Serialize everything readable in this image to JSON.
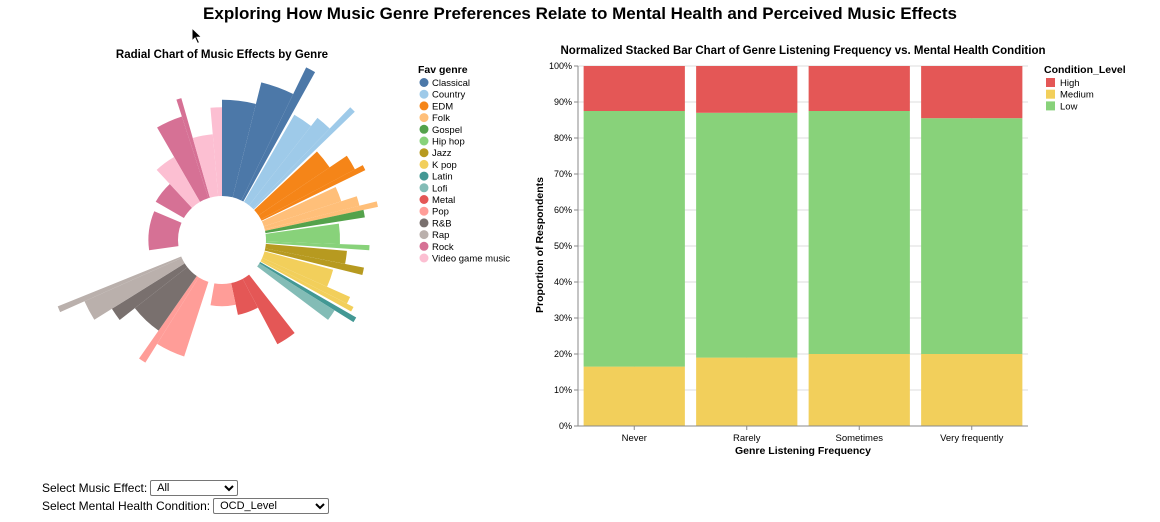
{
  "page": {
    "title": "Exploring How Music Genre Preferences Relate to Mental Health and Perceived Music Effects"
  },
  "controls": {
    "effect_label": "Select Music Effect:",
    "effect_value": "All",
    "condition_label": "Select Mental Health Condition:",
    "condition_value": "OCD_Level"
  },
  "colors": {
    "High": "#e45756",
    "Medium": "#f2cf5b",
    "Low": "#88d27a",
    "axis": "#888888",
    "grid": "#dddddd"
  },
  "chart_data": [
    {
      "type": "radial",
      "title": "Radial Chart of Music Effects by Genre",
      "legend_title": "Fav genre",
      "legend_position": "right",
      "genres": [
        {
          "name": "Classical",
          "color": "#4c78a8"
        },
        {
          "name": "Country",
          "color": "#9ecae9"
        },
        {
          "name": "EDM",
          "color": "#f58518"
        },
        {
          "name": "Folk",
          "color": "#ffbf79"
        },
        {
          "name": "Gospel",
          "color": "#54a24b"
        },
        {
          "name": "Hip hop",
          "color": "#88d27a"
        },
        {
          "name": "Jazz",
          "color": "#b79a20"
        },
        {
          "name": "K pop",
          "color": "#f2cf5b"
        },
        {
          "name": "Latin",
          "color": "#439894"
        },
        {
          "name": "Lofi",
          "color": "#83bcb6"
        },
        {
          "name": "Metal",
          "color": "#e45756"
        },
        {
          "name": "Pop",
          "color": "#ff9d98"
        },
        {
          "name": "R&B",
          "color": "#79706e"
        },
        {
          "name": "Rap",
          "color": "#bab0ac"
        },
        {
          "name": "Rock",
          "color": "#d67195"
        },
        {
          "name": "Video game music",
          "color": "#fcbfd2"
        }
      ],
      "wedges": [
        {
          "genre": "Classical",
          "start": 0,
          "end": 14,
          "value": 0.65
        },
        {
          "genre": "Classical",
          "start": 14,
          "end": 26,
          "value": 0.8
        },
        {
          "genre": "Classical",
          "start": 26,
          "end": 29,
          "value": 1.0
        },
        {
          "genre": "Country",
          "start": 30,
          "end": 38,
          "value": 0.68
        },
        {
          "genre": "Country",
          "start": 38,
          "end": 44,
          "value": 0.75
        },
        {
          "genre": "Country",
          "start": 44,
          "end": 46,
          "value": 0.95
        },
        {
          "genre": "EDM",
          "start": 47,
          "end": 56,
          "value": 0.58
        },
        {
          "genre": "EDM",
          "start": 56,
          "end": 62,
          "value": 0.72
        },
        {
          "genre": "EDM",
          "start": 62,
          "end": 64,
          "value": 0.78
        },
        {
          "genre": "Folk",
          "start": 65,
          "end": 72,
          "value": 0.55
        },
        {
          "genre": "Folk",
          "start": 72,
          "end": 76,
          "value": 0.66
        },
        {
          "genre": "Folk",
          "start": 76,
          "end": 78,
          "value": 0.78
        },
        {
          "genre": "Gospel",
          "start": 78,
          "end": 81,
          "value": 0.68
        },
        {
          "genre": "Hip hop",
          "start": 82,
          "end": 92,
          "value": 0.5
        },
        {
          "genre": "Hip hop",
          "start": 92,
          "end": 94,
          "value": 0.7
        },
        {
          "genre": "Jazz",
          "start": 95,
          "end": 101,
          "value": 0.55
        },
        {
          "genre": "Jazz",
          "start": 101,
          "end": 104,
          "value": 0.68
        },
        {
          "genre": "K pop",
          "start": 105,
          "end": 114,
          "value": 0.48
        },
        {
          "genre": "K pop",
          "start": 114,
          "end": 117,
          "value": 0.65
        },
        {
          "genre": "K pop",
          "start": 117,
          "end": 119,
          "value": 0.7
        },
        {
          "genre": "Latin",
          "start": 120,
          "end": 122,
          "value": 0.75
        },
        {
          "genre": "Lofi",
          "start": 122,
          "end": 127,
          "value": 0.6
        },
        {
          "genre": "Metal",
          "start": 142,
          "end": 152,
          "value": 0.5
        },
        {
          "genre": "Metal",
          "start": 152,
          "end": 168,
          "value": 0.22
        },
        {
          "genre": "Pop",
          "start": 168,
          "end": 190,
          "value": 0.15
        },
        {
          "genre": "Pop",
          "start": 198,
          "end": 212,
          "value": 0.53
        },
        {
          "genre": "Pop",
          "start": 212,
          "end": 215,
          "value": 0.68
        },
        {
          "genre": "R&B",
          "start": 215,
          "end": 232,
          "value": 0.45
        },
        {
          "genre": "R&B",
          "start": 232,
          "end": 238,
          "value": 0.58
        },
        {
          "genre": "Rap",
          "start": 238,
          "end": 246,
          "value": 0.72
        },
        {
          "genre": "Rap",
          "start": 246,
          "end": 248,
          "value": 0.9
        },
        {
          "genre": "Rock",
          "start": 262,
          "end": 293,
          "value": 0.2
        },
        {
          "genre": "Rock",
          "start": 300,
          "end": 317,
          "value": 0.22
        },
        {
          "genre": "Rock",
          "start": 330,
          "end": 342,
          "value": 0.58
        },
        {
          "genre": "Rock",
          "start": 342,
          "end": 344,
          "value": 0.7
        },
        {
          "genre": "Video game music",
          "start": 317,
          "end": 330,
          "value": 0.35
        },
        {
          "genre": "Video game music",
          "start": 344,
          "end": 355,
          "value": 0.42
        },
        {
          "genre": "Video game music",
          "start": 355,
          "end": 360,
          "value": 0.6
        }
      ]
    },
    {
      "type": "bar",
      "stacked": "normalized",
      "title": "Normalized Stacked Bar Chart of Genre Listening Frequency vs. Mental Health Condition",
      "xlabel": "Genre Listening Frequency",
      "ylabel": "Proportion of Respondents",
      "ylim": [
        0,
        1
      ],
      "yticks": [
        "0%",
        "10%",
        "20%",
        "30%",
        "40%",
        "50%",
        "60%",
        "70%",
        "80%",
        "90%",
        "100%"
      ],
      "grid": true,
      "legend_title": "Condition_Level",
      "legend_position": "right",
      "categories": [
        "Never",
        "Rarely",
        "Sometimes",
        "Very frequently"
      ],
      "series": [
        {
          "name": "Medium",
          "values": [
            0.165,
            0.19,
            0.2,
            0.2
          ]
        },
        {
          "name": "Low",
          "values": [
            0.71,
            0.68,
            0.675,
            0.655
          ]
        },
        {
          "name": "High",
          "values": [
            0.125,
            0.13,
            0.125,
            0.145
          ]
        }
      ]
    }
  ]
}
